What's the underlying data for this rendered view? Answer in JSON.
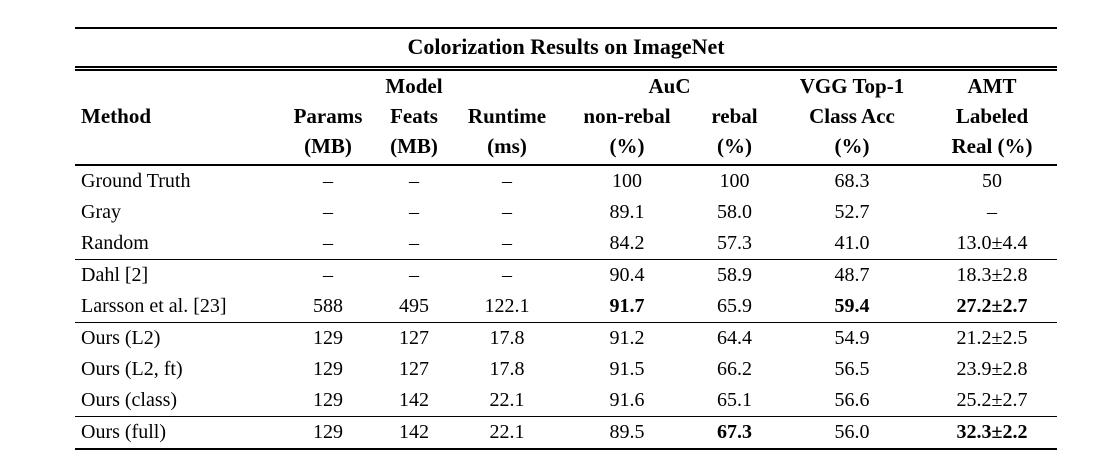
{
  "title": "Colorization Results on ImageNet",
  "table": {
    "group_headers": {
      "model": "Model",
      "auc": "AuC",
      "vgg": "VGG Top-1",
      "amt": "AMT"
    },
    "columns": [
      {
        "name": "Method",
        "unit": ""
      },
      {
        "name": "Params",
        "unit": "(MB)"
      },
      {
        "name": "Feats",
        "unit": "(MB)"
      },
      {
        "name": "Runtime",
        "unit": "(ms)"
      },
      {
        "name": "non-rebal",
        "unit": "(%)"
      },
      {
        "name": "rebal",
        "unit": "(%)"
      },
      {
        "name": "Class Acc",
        "unit": "(%)"
      },
      {
        "name": "Labeled",
        "unit": "Real (%)"
      }
    ],
    "rows": [
      {
        "rule_below": false,
        "cells": [
          {
            "text": "Ground Truth"
          },
          {
            "text": "–"
          },
          {
            "text": "–"
          },
          {
            "text": "–"
          },
          {
            "text": "100"
          },
          {
            "text": "100"
          },
          {
            "text": "68.3"
          },
          {
            "text": "50"
          }
        ]
      },
      {
        "rule_below": false,
        "cells": [
          {
            "text": "Gray"
          },
          {
            "text": "–"
          },
          {
            "text": "–"
          },
          {
            "text": "–"
          },
          {
            "text": "89.1"
          },
          {
            "text": "58.0"
          },
          {
            "text": "52.7"
          },
          {
            "text": "–"
          }
        ]
      },
      {
        "rule_below": true,
        "cells": [
          {
            "text": "Random"
          },
          {
            "text": "–"
          },
          {
            "text": "–"
          },
          {
            "text": "–"
          },
          {
            "text": "84.2"
          },
          {
            "text": "57.3"
          },
          {
            "text": "41.0"
          },
          {
            "text": "13.0±4.4"
          }
        ]
      },
      {
        "rule_below": false,
        "cells": [
          {
            "text": "Dahl [2]"
          },
          {
            "text": "–"
          },
          {
            "text": "–"
          },
          {
            "text": "–"
          },
          {
            "text": "90.4"
          },
          {
            "text": "58.9"
          },
          {
            "text": "48.7"
          },
          {
            "text": "18.3±2.8"
          }
        ]
      },
      {
        "rule_below": true,
        "cells": [
          {
            "text": "Larsson et al. [23]"
          },
          {
            "text": "588"
          },
          {
            "text": "495"
          },
          {
            "text": "122.1"
          },
          {
            "text": "91.7",
            "bold": true
          },
          {
            "text": "65.9"
          },
          {
            "text": "59.4",
            "bold": true
          },
          {
            "text": "27.2±2.7",
            "bold": true
          }
        ]
      },
      {
        "rule_below": false,
        "cells": [
          {
            "text": "Ours (L2)"
          },
          {
            "text": "129"
          },
          {
            "text": "127"
          },
          {
            "text": "17.8"
          },
          {
            "text": "91.2"
          },
          {
            "text": "64.4"
          },
          {
            "text": "54.9"
          },
          {
            "text": "21.2±2.5"
          }
        ]
      },
      {
        "rule_below": false,
        "cells": [
          {
            "text": "Ours (L2, ft)"
          },
          {
            "text": "129"
          },
          {
            "text": "127"
          },
          {
            "text": "17.8"
          },
          {
            "text": "91.5"
          },
          {
            "text": "66.2"
          },
          {
            "text": "56.5"
          },
          {
            "text": "23.9±2.8"
          }
        ]
      },
      {
        "rule_below": true,
        "cells": [
          {
            "text": "Ours (class)"
          },
          {
            "text": "129"
          },
          {
            "text": "142"
          },
          {
            "text": "22.1"
          },
          {
            "text": "91.6"
          },
          {
            "text": "65.1"
          },
          {
            "text": "56.6"
          },
          {
            "text": "25.2±2.7"
          }
        ]
      },
      {
        "rule_below": false,
        "cells": [
          {
            "text": "Ours (full)"
          },
          {
            "text": "129"
          },
          {
            "text": "142"
          },
          {
            "text": "22.1"
          },
          {
            "text": "89.5"
          },
          {
            "text": "67.3",
            "bold": true
          },
          {
            "text": "56.0"
          },
          {
            "text": "32.3±2.2",
            "bold": true
          }
        ]
      }
    ]
  }
}
